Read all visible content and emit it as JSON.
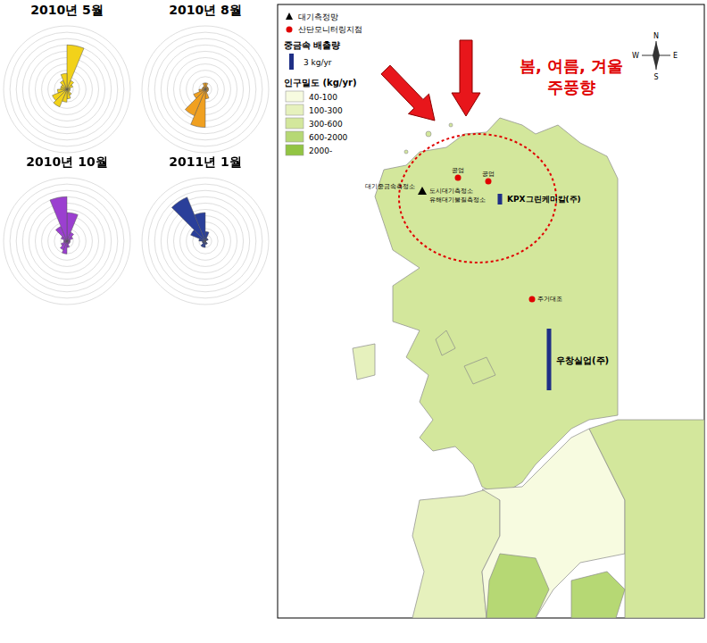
{
  "chart_data": [
    {
      "type": "polarArea",
      "title": "2010년 5월",
      "categories": [
        null,
        null,
        null,
        null,
        null,
        null,
        null,
        null,
        null,
        null,
        null,
        null,
        null,
        null,
        null,
        null
      ],
      "values": [
        14,
        3,
        2,
        1,
        1,
        1,
        2,
        3,
        4,
        6,
        5,
        3,
        2,
        2,
        3,
        5
      ],
      "color": "#f2d21a",
      "ylim": [
        0,
        20
      ],
      "yticks": [
        0,
        2,
        4,
        6,
        8,
        10,
        12,
        14,
        16,
        18,
        20
      ],
      "grid": true,
      "tick_labels": false
    },
    {
      "type": "polarArea",
      "title": "2010년 8월",
      "categories": [
        null,
        null,
        null,
        null,
        null,
        null,
        null,
        null,
        null,
        null,
        null,
        null,
        null,
        null,
        null,
        null
      ],
      "values": [
        2,
        1,
        1,
        1,
        1,
        1,
        1,
        3,
        12,
        9,
        4,
        2,
        1,
        1,
        1,
        2
      ],
      "color": "#f0a020",
      "ylim": [
        0,
        20
      ],
      "yticks": [
        0,
        2,
        4,
        6,
        8,
        10,
        12,
        14,
        16,
        18,
        20
      ],
      "grid": true,
      "tick_labels": false
    },
    {
      "type": "polarArea",
      "title": "2010년 10월",
      "categories": [
        null,
        null,
        null,
        null,
        null,
        null,
        null,
        null,
        null,
        null,
        null,
        null,
        null,
        null,
        null,
        null
      ],
      "values": [
        9,
        3,
        2,
        1,
        1,
        1,
        1,
        2,
        4,
        3,
        2,
        1,
        1,
        2,
        5,
        14
      ],
      "color": "#9b3fd0",
      "ylim": [
        0,
        20
      ],
      "yticks": [
        0,
        2,
        4,
        6,
        8,
        10,
        12,
        14,
        16,
        18,
        20
      ],
      "grid": true,
      "tick_labels": false
    },
    {
      "type": "polarArea",
      "title": "2011년 1월",
      "categories": [
        null,
        null,
        null,
        null,
        null,
        null,
        null,
        null,
        null,
        null,
        null,
        null,
        null,
        null,
        null,
        null
      ],
      "values": [
        3,
        1,
        1,
        0,
        0,
        0,
        1,
        1,
        2,
        2,
        1,
        1,
        2,
        5,
        15,
        9
      ],
      "color": "#2a3f9a",
      "ylim": [
        0,
        20
      ],
      "yticks": [
        0,
        2,
        4,
        6,
        8,
        10,
        12,
        14,
        16,
        18,
        20
      ],
      "grid": true,
      "tick_labels": false
    }
  ],
  "map": {
    "annotation": [
      "봄, 여름, 겨울",
      "주풍향"
    ],
    "compass": [
      "N",
      "E",
      "S",
      "W"
    ],
    "legend": {
      "station_network": "대기측정망",
      "monitoring_site": "산단모니터링지점",
      "emission_title": "중금속 배출량",
      "emission_scale": {
        "value": 3,
        "label": "3 kg/yr"
      },
      "density_title": "인구밀도 (kg/yr)",
      "density_classes": [
        {
          "label": "40-100",
          "color": "#f7fbe0"
        },
        {
          "label": "100-300",
          "color": "#e6f1bd"
        },
        {
          "label": "300-600",
          "color": "#d3e79c"
        },
        {
          "label": "600-2000",
          "color": "#b6d874"
        },
        {
          "label": "2000-",
          "color": "#92c443"
        }
      ]
    },
    "regions": [
      "300-600",
      "100-300",
      "40-100",
      "300-600",
      "600-2000",
      "600-2000",
      "300-600",
      "100-300",
      "300-600"
    ],
    "stations": [
      "대기중금속측정소",
      "도시대기측정소",
      "유해대기물질측정소"
    ],
    "sites": [
      "공업",
      "공업",
      "주거대조"
    ],
    "emitters": [
      {
        "label": "KPX그린케미칼(주)",
        "emission": 2
      },
      {
        "label": "우창실업(주)",
        "emission": 11.5
      }
    ]
  }
}
